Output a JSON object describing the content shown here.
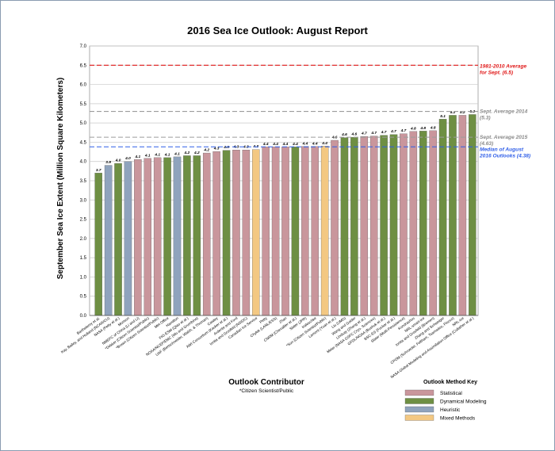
{
  "chart_data": {
    "type": "bar",
    "title": "2016 Sea Ice Outlook: August Report",
    "ylabel": "September Sea Ice Extent (Million Square Kilometers)",
    "xlabel": "Outlook Contributor",
    "footnote": "*Citizen Scientist/Public",
    "ylim": [
      0,
      7
    ],
    "yticks": [
      "0.0",
      "0.5",
      "1.0",
      "1.5",
      "2.0",
      "2.5",
      "3.0",
      "3.5",
      "4.0",
      "4.5",
      "5.0",
      "5.5",
      "6.0",
      "6.5",
      "7.0"
    ],
    "grid": true,
    "colors": {
      "Statistical": "#c9969c",
      "Dynamical Modeling": "#6e8f43",
      "Heuristic": "#8fa3bd",
      "Mixed Methods": "#f3c882"
    },
    "bars": [
      {
        "label": "Barthelemy et al.",
        "value": 3.7,
        "method": "Dynamical Modeling",
        "value_label": "3.7"
      },
      {
        "label": "Kay, Bailey, and Holland (NCAR/CU)",
        "value": 3.9,
        "method": "Heuristic",
        "value_label": "3.9"
      },
      {
        "label": "NASA (Petty et al.)",
        "value": 3.95,
        "method": "Dynamical Modeling",
        "value_label": "4.0"
      },
      {
        "label": "Morison",
        "value": 4.0,
        "method": "Heuristic",
        "value_label": "4.0"
      },
      {
        "label": "NMEFC of China (Li and Li)",
        "value": 4.05,
        "method": "Statistical",
        "value_label": "4.1"
      },
      {
        "label": "*Dekker (Citizen Scientist/Public)",
        "value": 4.08,
        "method": "Statistical",
        "value_label": "4.1"
      },
      {
        "label": "*Brown (Citizen Scientist/Public)",
        "value": 4.1,
        "method": "Statistical",
        "value_label": "4.1"
      },
      {
        "label": "Met Office",
        "value": 4.1,
        "method": "Dynamical Modeling",
        "value_label": "4.1"
      },
      {
        "label": "Hamilton",
        "value": 4.12,
        "method": "Heuristic",
        "value_label": "4.1"
      },
      {
        "label": "FIO-ESM (Qiao et al.)",
        "value": 4.15,
        "method": "Dynamical Modeling",
        "value_label": "4.2"
      },
      {
        "label": "NOAA/NCEP/EMC (Wu and Grumbine)",
        "value": 4.15,
        "method": "Dynamical Modeling",
        "value_label": "4.2"
      },
      {
        "label": "UAF (Bertschneider, Walsh, & Thoman)",
        "value": 4.22,
        "method": "Statistical",
        "value_label": "4.2"
      },
      {
        "label": "Cawley",
        "value": 4.26,
        "method": "Statistical",
        "value_label": "4.3"
      },
      {
        "label": "AWI Consortium (Kauker et al.)",
        "value": 4.29,
        "method": "Dynamical Modeling",
        "value_label": "4.3"
      },
      {
        "label": "Ardente and Ford",
        "value": 4.3,
        "method": "Statistical",
        "value_label": "4.3"
      },
      {
        "label": "Ionita and Grosfeld (NSIDC)",
        "value": 4.3,
        "method": "Statistical",
        "value_label": "4.3"
      },
      {
        "label": "Canadian Ice Service",
        "value": 4.31,
        "method": "Mixed Methods",
        "value_label": "4.3"
      },
      {
        "label": "Petty",
        "value": 4.38,
        "method": "Statistical",
        "value_label": "4.4"
      },
      {
        "label": "Chylek (LANL/ESS)",
        "value": 4.38,
        "method": "Statistical",
        "value_label": "4.4"
      },
      {
        "label": "Zhan",
        "value": 4.38,
        "method": "Statistical",
        "value_label": "4.4"
      },
      {
        "label": "CNRM (Chevallier et al.)",
        "value": 4.38,
        "method": "Dynamical Modeling",
        "value_label": "4.4"
      },
      {
        "label": "Slater (JPR)",
        "value": 4.39,
        "method": "Statistical",
        "value_label": "4.4"
      },
      {
        "label": "Kaleschke",
        "value": 4.39,
        "method": "Statistical",
        "value_label": "4.4"
      },
      {
        "label": "*Sun (Citizen Scientist/Public)",
        "value": 4.4,
        "method": "Mixed Methods",
        "value_label": "4.4"
      },
      {
        "label": "Lamont (Yuan et al.)",
        "value": 4.55,
        "method": "Statistical",
        "value_label": "4.6"
      },
      {
        "label": "Liu (UMD)",
        "value": 4.62,
        "method": "Dynamical Modeling",
        "value_label": "4.6"
      },
      {
        "label": "Wang and Golder",
        "value": 4.63,
        "method": "Dynamical Modeling",
        "value_label": "4.6"
      },
      {
        "label": "Lindsay (Zhang et al.)",
        "value": 4.65,
        "method": "Statistical",
        "value_label": "4.7"
      },
      {
        "label": "Meier (NASA GSFC Cryo. Sciences)",
        "value": 4.66,
        "method": "Statistical",
        "value_label": "4.7"
      },
      {
        "label": "GFDL/NOAA (Bushuk et al.)",
        "value": 4.68,
        "method": "Dynamical Modeling",
        "value_label": "4.7"
      },
      {
        "label": "BSC-ES (Fuckar et al.)",
        "value": 4.7,
        "method": "Dynamical Modeling",
        "value_label": "4.7"
      },
      {
        "label": "Slater (Multi-Persistence)",
        "value": 4.72,
        "method": "Statistical",
        "value_label": "4.7"
      },
      {
        "label": "Kondrashov",
        "value": 4.78,
        "method": "Statistical",
        "value_label": "4.8"
      },
      {
        "label": "NRL-smart-ice",
        "value": 4.79,
        "method": "Dynamical Modeling",
        "value_label": "4.8"
      },
      {
        "label": "Ionita and Grosfeld (Bremen)",
        "value": 4.8,
        "method": "Statistical",
        "value_label": "4.8"
      },
      {
        "label": "Zhang and Schweiger",
        "value": 5.1,
        "method": "Dynamical Modeling",
        "value_label": "5.1"
      },
      {
        "label": "CPOM (Schroeder, Feltham, Tsamados, Flocco)",
        "value": 5.2,
        "method": "Dynamical Modeling",
        "value_label": "5.2"
      },
      {
        "label": "NRL-ice",
        "value": 5.2,
        "method": "Statistical",
        "value_label": "5.2"
      },
      {
        "label": "NASA Global Modeling and Assimilation Office (Cullather et al.)",
        "value": 5.22,
        "method": "Dynamical Modeling",
        "value_label": "5.2"
      }
    ],
    "reference_lines": [
      {
        "value": 6.5,
        "color": "#e01818",
        "style": "dashed",
        "label_lines": [
          "1981-2010 Average",
          "for Sept. (6.5)"
        ]
      },
      {
        "value": 5.3,
        "color": "#9c9c9c",
        "style": "dashed",
        "label_lines": [
          "Sept. Average 2014",
          "(5.3)"
        ]
      },
      {
        "value": 4.63,
        "color": "#9c9c9c",
        "style": "dashed",
        "label_lines": [
          "Sept. Average 2015",
          "(4.63)"
        ]
      },
      {
        "value": 4.38,
        "color": "#2f5ee8",
        "style": "dashed",
        "label_lines": [
          "Median of August",
          "2016 Outlooks (4.38)"
        ]
      }
    ],
    "legend": {
      "title": "Outlook Method Key",
      "position": "bottom-right",
      "items": [
        "Statistical",
        "Dynamical Modeling",
        "Heuristic",
        "Mixed Methods"
      ]
    }
  }
}
